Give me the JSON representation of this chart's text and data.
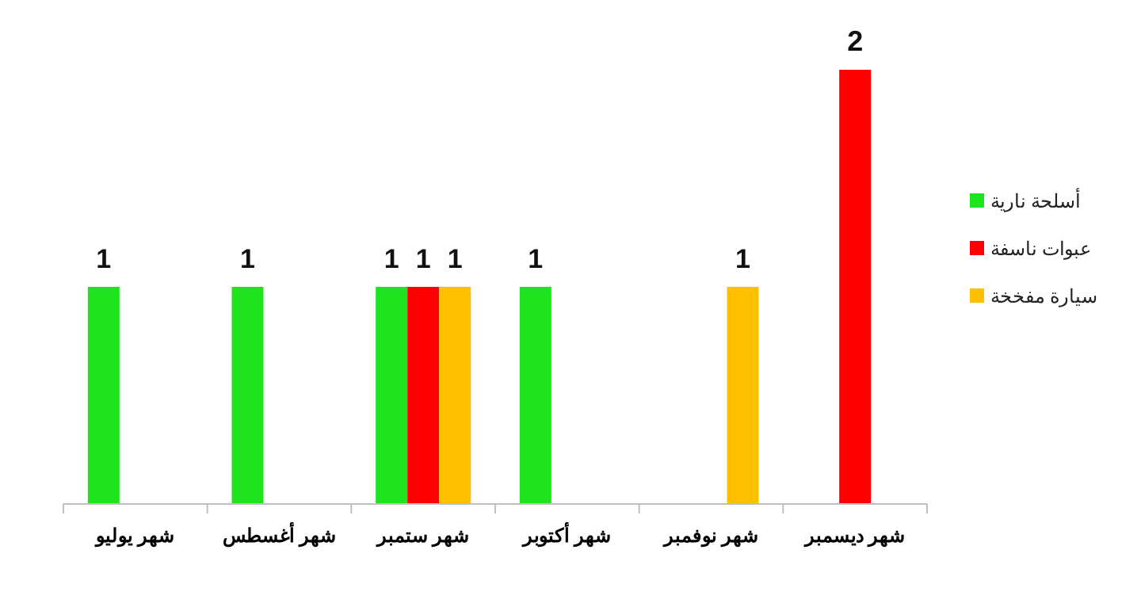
{
  "chart_data": {
    "type": "bar",
    "categories": [
      "شهر يوليو",
      "شهر أغسطس",
      "شهر ستمبر",
      "شهر أكتوبر",
      "شهر نوفمبر",
      "شهر ديسمبر"
    ],
    "series": [
      {
        "name": "أسلحة نارية",
        "color": "#1ee41e",
        "values": [
          1,
          1,
          1,
          1,
          null,
          null
        ]
      },
      {
        "name": "عبوات ناسفة",
        "color": "#ff0000",
        "values": [
          null,
          null,
          1,
          null,
          null,
          2
        ]
      },
      {
        "name": "سيارة مفخخة",
        "color": "#ffc000",
        "values": [
          null,
          null,
          1,
          null,
          1,
          null
        ]
      }
    ],
    "data_labels": true,
    "legend": "right"
  }
}
